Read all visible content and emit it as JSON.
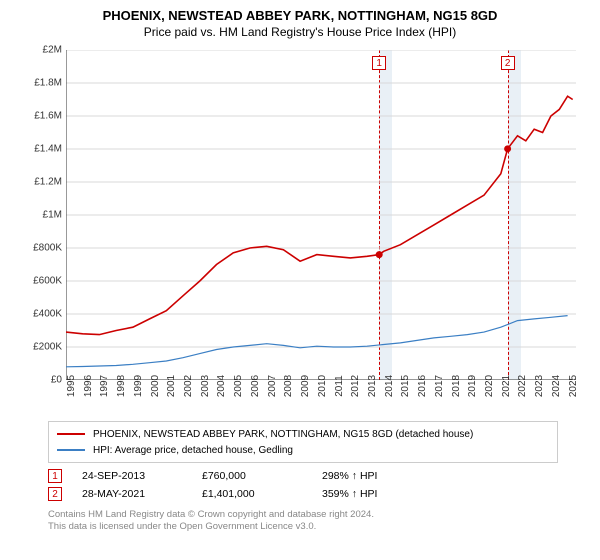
{
  "title": "PHOENIX, NEWSTEAD ABBEY PARK, NOTTINGHAM, NG15 8GD",
  "subtitle": "Price paid vs. HM Land Registry's House Price Index (HPI)",
  "chart": {
    "type": "line",
    "xlim": [
      1995,
      2025.5
    ],
    "ylim": [
      0,
      2000000
    ],
    "ytick_step": 200000,
    "y_ticks": [
      {
        "v": 0,
        "label": "£0"
      },
      {
        "v": 200000,
        "label": "£200K"
      },
      {
        "v": 400000,
        "label": "£400K"
      },
      {
        "v": 600000,
        "label": "£600K"
      },
      {
        "v": 800000,
        "label": "£800K"
      },
      {
        "v": 1000000,
        "label": "£1M"
      },
      {
        "v": 1200000,
        "label": "£1.2M"
      },
      {
        "v": 1400000,
        "label": "£1.4M"
      },
      {
        "v": 1600000,
        "label": "£1.6M"
      },
      {
        "v": 1800000,
        "label": "£1.8M"
      },
      {
        "v": 2000000,
        "label": "£2M"
      }
    ],
    "x_ticks": [
      1995,
      1996,
      1997,
      1998,
      1999,
      2000,
      2001,
      2002,
      2003,
      2004,
      2005,
      2006,
      2007,
      2008,
      2009,
      2010,
      2011,
      2012,
      2013,
      2014,
      2015,
      2016,
      2017,
      2018,
      2019,
      2020,
      2021,
      2022,
      2023,
      2024,
      2025
    ],
    "grid_color": "#d9d9d9",
    "axis_color": "#333333",
    "background_color": "#ffffff",
    "shade_color": "rgba(70,130,180,0.12)",
    "shade_ranges": [
      {
        "from": 2013.73,
        "to": 2014.5
      },
      {
        "from": 2021.41,
        "to": 2022.2
      }
    ],
    "series": [
      {
        "name": "property",
        "label": "PHOENIX, NEWSTEAD ABBEY PARK, NOTTINGHAM, NG15 8GD (detached house)",
        "color": "#cc0000",
        "line_width": 1.6,
        "data": [
          [
            1995,
            290000
          ],
          [
            1996,
            280000
          ],
          [
            1997,
            275000
          ],
          [
            1998,
            300000
          ],
          [
            1999,
            320000
          ],
          [
            2000,
            370000
          ],
          [
            2001,
            420000
          ],
          [
            2002,
            510000
          ],
          [
            2003,
            600000
          ],
          [
            2004,
            700000
          ],
          [
            2005,
            770000
          ],
          [
            2006,
            800000
          ],
          [
            2007,
            810000
          ],
          [
            2008,
            790000
          ],
          [
            2009,
            720000
          ],
          [
            2010,
            760000
          ],
          [
            2011,
            750000
          ],
          [
            2012,
            740000
          ],
          [
            2013,
            750000
          ],
          [
            2013.73,
            760000
          ],
          [
            2014,
            780000
          ],
          [
            2015,
            820000
          ],
          [
            2016,
            880000
          ],
          [
            2017,
            940000
          ],
          [
            2018,
            1000000
          ],
          [
            2019,
            1060000
          ],
          [
            2020,
            1120000
          ],
          [
            2021,
            1250000
          ],
          [
            2021.41,
            1401000
          ],
          [
            2022,
            1480000
          ],
          [
            2022.5,
            1450000
          ],
          [
            2023,
            1520000
          ],
          [
            2023.5,
            1500000
          ],
          [
            2024,
            1600000
          ],
          [
            2024.5,
            1640000
          ],
          [
            2025,
            1720000
          ],
          [
            2025.3,
            1700000
          ]
        ]
      },
      {
        "name": "hpi",
        "label": "HPI: Average price, detached house, Gedling",
        "color": "#3b7fc4",
        "line_width": 1.2,
        "data": [
          [
            1995,
            80000
          ],
          [
            1996,
            82000
          ],
          [
            1997,
            85000
          ],
          [
            1998,
            88000
          ],
          [
            1999,
            95000
          ],
          [
            2000,
            105000
          ],
          [
            2001,
            115000
          ],
          [
            2002,
            135000
          ],
          [
            2003,
            160000
          ],
          [
            2004,
            185000
          ],
          [
            2005,
            200000
          ],
          [
            2006,
            210000
          ],
          [
            2007,
            220000
          ],
          [
            2008,
            210000
          ],
          [
            2009,
            195000
          ],
          [
            2010,
            205000
          ],
          [
            2011,
            200000
          ],
          [
            2012,
            200000
          ],
          [
            2013,
            205000
          ],
          [
            2014,
            215000
          ],
          [
            2015,
            225000
          ],
          [
            2016,
            240000
          ],
          [
            2017,
            255000
          ],
          [
            2018,
            265000
          ],
          [
            2019,
            275000
          ],
          [
            2020,
            290000
          ],
          [
            2021,
            320000
          ],
          [
            2022,
            360000
          ],
          [
            2023,
            370000
          ],
          [
            2024,
            380000
          ],
          [
            2025,
            390000
          ]
        ]
      }
    ],
    "markers": [
      {
        "n": 1,
        "x": 2013.73,
        "y": 760000,
        "color": "#cc0000"
      },
      {
        "n": 2,
        "x": 2021.41,
        "y": 1401000,
        "color": "#cc0000"
      }
    ]
  },
  "sales": [
    {
      "n": "1",
      "date": "24-SEP-2013",
      "price": "£760,000",
      "pct": "298% ↑ HPI",
      "color": "#cc0000"
    },
    {
      "n": "2",
      "date": "28-MAY-2021",
      "price": "£1,401,000",
      "pct": "359% ↑ HPI",
      "color": "#cc0000"
    }
  ],
  "attribution": {
    "line1": "Contains HM Land Registry data © Crown copyright and database right 2024.",
    "line2": "This data is licensed under the Open Government Licence v3.0."
  }
}
